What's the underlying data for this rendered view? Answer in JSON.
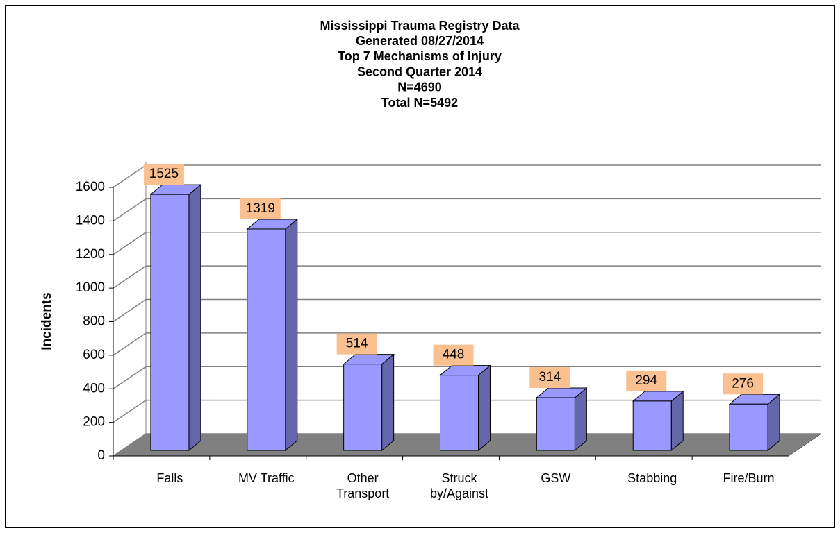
{
  "chart_data": {
    "type": "bar3d",
    "title": [
      "Mississippi Trauma Registry Data",
      "Generated 08/27/2014",
      "Top 7 Mechanisms of Injury",
      "Second Quarter 2014",
      "N=4690",
      "Total N=5492"
    ],
    "y_label": "Incidents",
    "categories": [
      "Falls",
      "MV Traffic",
      "Other Transport",
      "Struck by/Against",
      "GSW",
      "Stabbing",
      "Fire/Burn"
    ],
    "values": [
      1525,
      1319,
      514,
      448,
      314,
      294,
      276
    ],
    "color": "#9999ff",
    "side_color": "#6666aa",
    "label_box_color": "#fac090",
    "ylim": [
      0,
      1600
    ],
    "yticks": [
      0,
      200,
      400,
      600,
      800,
      1000,
      1200,
      1400,
      1600
    ],
    "grid": true
  }
}
